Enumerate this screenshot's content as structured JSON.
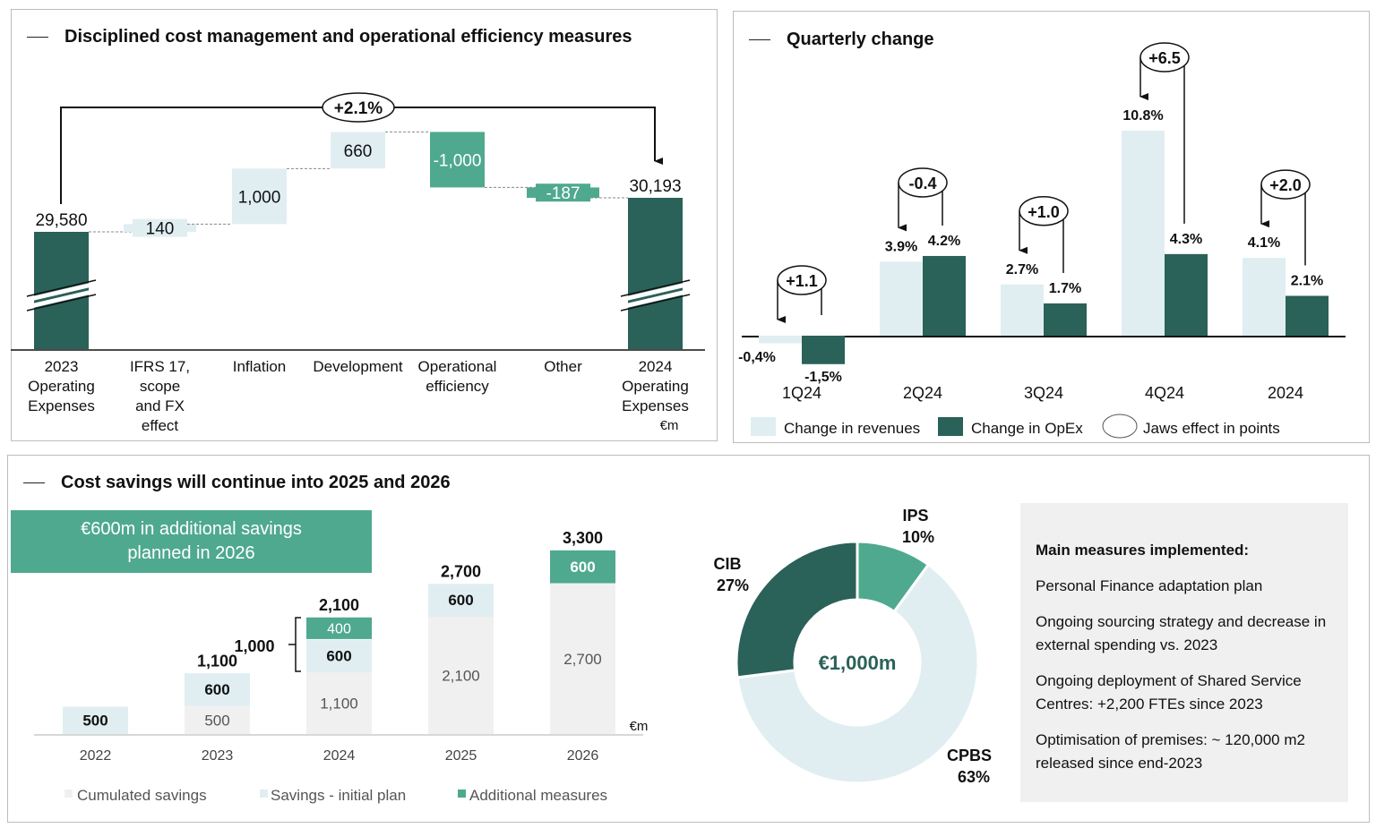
{
  "colors": {
    "dark": "#2a6158",
    "mid": "#4fa98e",
    "light": "#e0eef2",
    "gray": "#f0f0f0"
  },
  "panel1": {
    "title": "Disciplined cost management and operational efficiency measures",
    "unit": "€m"
  },
  "panel2": {
    "title": "Quarterly change"
  },
  "panel3": {
    "title": "Cost savings will continue into 2025 and 2026",
    "banner_line1": "€600m in additional savings",
    "banner_line2": "planned in 2026",
    "unit": "€m",
    "box_title": "Main measures implemented:",
    "measures": [
      "Personal Finance adaptation plan",
      "Ongoing sourcing strategy and decrease in external spending vs. 2023",
      "Ongoing deployment of Shared Service Centres: +2,200 FTEs since 2023",
      "Optimisation of premises: ~ 120,000 m2 released since end-2023"
    ]
  },
  "chart_data": [
    {
      "type": "waterfall",
      "title": "Disciplined cost management and operational efficiency measures",
      "unit": "€m",
      "categories": [
        [
          "2023",
          "Operating",
          "Expenses"
        ],
        [
          "IFRS 17,",
          "scope",
          "and FX",
          "effect"
        ],
        [
          "Inflation"
        ],
        [
          "Development"
        ],
        [
          "Operational",
          "efficiency"
        ],
        [
          "Other"
        ],
        [
          "2024",
          "Operating",
          "Expenses"
        ]
      ],
      "values": [
        29580,
        140,
        1000,
        660,
        -1000,
        -187,
        30193
      ],
      "labels": [
        "29,580",
        "140",
        "1,000",
        "660",
        "-1,000",
        "-187",
        "30,193"
      ],
      "kinds": [
        "total",
        "increase",
        "increase",
        "increase",
        "decrease",
        "decrease",
        "total"
      ],
      "annotation": "+2.1%",
      "axis_break": true
    },
    {
      "type": "bar",
      "title": "Quarterly change",
      "categories": [
        "1Q24",
        "2Q24",
        "3Q24",
        "4Q24",
        "2024"
      ],
      "series": [
        {
          "name": "Change in revenues",
          "values": [
            -0.4,
            3.9,
            2.7,
            10.8,
            4.1
          ],
          "labels": [
            "-0,4%",
            "3.9%",
            "2.7%",
            "10.8%",
            "4.1%"
          ]
        },
        {
          "name": "Change in OpEx",
          "values": [
            -1.5,
            4.2,
            1.7,
            4.3,
            2.1
          ],
          "labels": [
            "-1,5%",
            "4.2%",
            "1.7%",
            "4.3%",
            "2.1%"
          ]
        }
      ],
      "jaws": {
        "name": "Jaws effect in points",
        "values": [
          "+1.1",
          "-0.4",
          "+1.0",
          "+6.5",
          "+2.0"
        ]
      },
      "unit": "%"
    },
    {
      "type": "stacked_bar",
      "title": "Cost savings will continue into 2025 and 2026",
      "unit": "€m",
      "categories": [
        "2022",
        "2023",
        "2024",
        "2025",
        "2026"
      ],
      "series": [
        {
          "name": "Cumulated savings",
          "values": [
            0,
            500,
            1100,
            2100,
            2700
          ]
        },
        {
          "name": "Savings - initial plan",
          "values": [
            500,
            600,
            600,
            600,
            0
          ]
        },
        {
          "name": "Additional measures",
          "values": [
            0,
            0,
            400,
            0,
            600
          ]
        }
      ],
      "totals": [
        "",
        "1,100",
        "2,100",
        "2,700",
        "3,300"
      ],
      "bracket": {
        "category": "2024",
        "label": "1,000"
      }
    },
    {
      "type": "pie",
      "donut": true,
      "center_label": "€1,000m",
      "slices": [
        {
          "name": "IPS",
          "value": 10,
          "label": "10%"
        },
        {
          "name": "CPBS",
          "value": 63,
          "label": "63%"
        },
        {
          "name": "CIB",
          "value": 27,
          "label": "27%"
        }
      ]
    }
  ]
}
